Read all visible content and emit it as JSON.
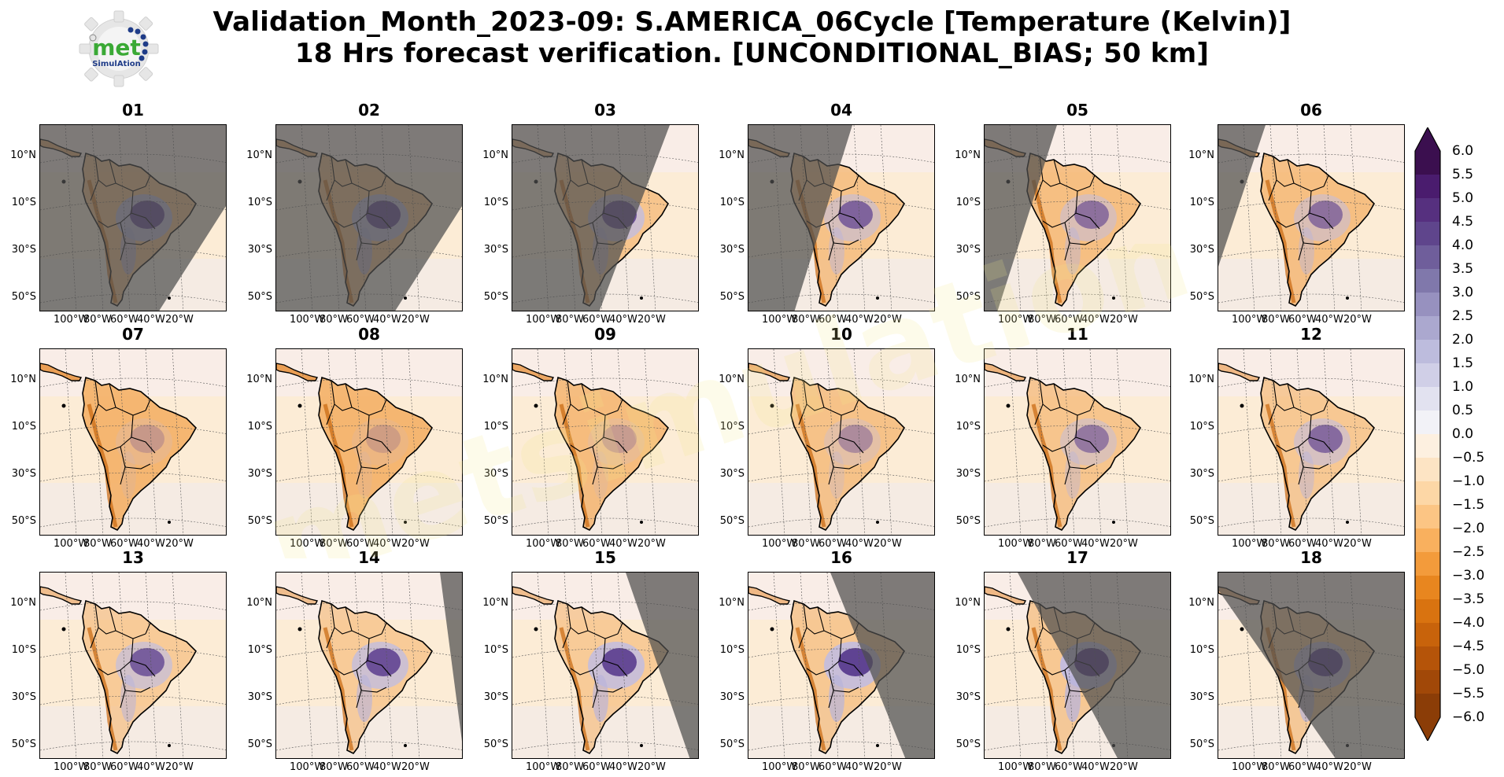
{
  "figure": {
    "title_line1": "Validation_Month_2023-09: S.AMERICA_06Cycle [Temperature (Kelvin)]",
    "title_line2": "18 Hrs forecast verification. [UNCONDITIONAL_BIAS; 50 km]",
    "logo": {
      "text_main": "met",
      "text_sub": "SimulAtion",
      "icon": "gear-logo-icon"
    },
    "watermark_text": "metsimulation",
    "lat_labels": [
      "10°N",
      "10°S",
      "30°S",
      "50°S"
    ],
    "lon_labels": [
      "100°W",
      "80°W",
      "60°W",
      "40°W",
      "20°W"
    ],
    "panels": [
      {
        "label": "01",
        "shade": "left-large"
      },
      {
        "label": "02",
        "shade": "left-large"
      },
      {
        "label": "03",
        "shade": "left-medium"
      },
      {
        "label": "04",
        "shade": "left-small"
      },
      {
        "label": "05",
        "shade": "left-thin"
      },
      {
        "label": "06",
        "shade": "left-sliver"
      },
      {
        "label": "07",
        "shade": "none"
      },
      {
        "label": "08",
        "shade": "none"
      },
      {
        "label": "09",
        "shade": "none"
      },
      {
        "label": "10",
        "shade": "none"
      },
      {
        "label": "11",
        "shade": "none"
      },
      {
        "label": "12",
        "shade": "none"
      },
      {
        "label": "13",
        "shade": "none"
      },
      {
        "label": "14",
        "shade": "right-sliver"
      },
      {
        "label": "15",
        "shade": "right-small"
      },
      {
        "label": "16",
        "shade": "right-medium"
      },
      {
        "label": "17",
        "shade": "right-large"
      },
      {
        "label": "18",
        "shade": "right-xlarge"
      }
    ]
  },
  "colorbar": {
    "ticks": [
      "6.0",
      "5.5",
      "5.0",
      "4.5",
      "4.0",
      "3.5",
      "3.0",
      "2.5",
      "2.0",
      "1.5",
      "1.0",
      "0.5",
      "0.0",
      "−0.5",
      "−1.0",
      "−1.5",
      "−2.0",
      "−2.5",
      "−3.0",
      "−3.5",
      "−4.0",
      "−4.5",
      "−5.0",
      "−5.5",
      "−6.0"
    ],
    "colors": [
      "#3b0f4f",
      "#4a1c6e",
      "#56307f",
      "#5f458c",
      "#6f5e9b",
      "#8078ab",
      "#9791bf",
      "#aba8cf",
      "#bdbcdd",
      "#d0cfe7",
      "#e2e2f0",
      "#f2f2f7",
      "#fdf0e0",
      "#fde4c4",
      "#fdd7a6",
      "#fcc584",
      "#f9b05e",
      "#f39b3b",
      "#e8861f",
      "#d97310",
      "#c8630b",
      "#b55409",
      "#a14808",
      "#8b3d07"
    ]
  }
}
